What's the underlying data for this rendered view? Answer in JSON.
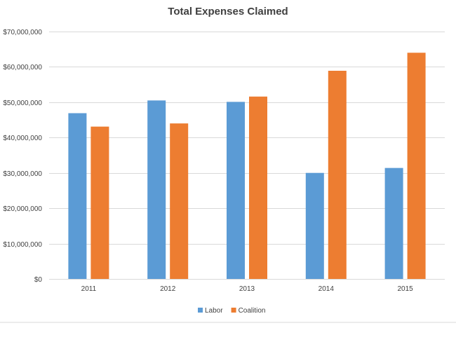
{
  "chart_data": {
    "type": "bar",
    "title": "Total Expenses Claimed",
    "xlabel": "",
    "ylabel": "",
    "categories": [
      "2011",
      "2012",
      "2013",
      "2014",
      "2015"
    ],
    "series": [
      {
        "name": "Labor",
        "color": "#5B9BD5",
        "values": [
          46900000,
          50500000,
          50100000,
          30000000,
          31400000
        ]
      },
      {
        "name": "Coalition",
        "color": "#ED7D31",
        "values": [
          43100000,
          44000000,
          51600000,
          58900000,
          64000000
        ]
      }
    ],
    "ylim": [
      0,
      70000000
    ],
    "yticks": [
      0,
      10000000,
      20000000,
      30000000,
      40000000,
      50000000,
      60000000,
      70000000
    ],
    "ytick_labels": [
      "$0",
      "$10,000,000",
      "$20,000,000",
      "$30,000,000",
      "$40,000,000",
      "$50,000,000",
      "$60,000,000",
      "$70,000,000"
    ],
    "grid": true,
    "legend_position": "bottom",
    "colors": {
      "gridline": "#D9D9D9",
      "text": "#404040",
      "border": "#D9D9D9"
    }
  }
}
